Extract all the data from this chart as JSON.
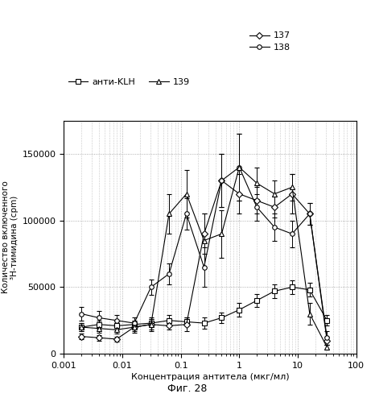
{
  "xlabel": "Концентрация антитела (мкг/мл)",
  "ylabel_line1": "Количество включенного",
  "ylabel_line2": "³H-тимидина (cpm)",
  "caption": "Фиг. 28",
  "xlim": [
    0.001,
    100
  ],
  "ylim": [
    0,
    175000
  ],
  "yticks": [
    0,
    50000,
    100000,
    150000
  ],
  "ytick_labels": [
    "0",
    "50000",
    "100000",
    "150000"
  ],
  "xtick_labels": [
    "0.001",
    "0.01",
    "0.1",
    "1",
    "10",
    "100"
  ],
  "series": {
    "137": {
      "x": [
        0.002,
        0.004,
        0.008,
        0.016,
        0.031,
        0.063,
        0.125,
        0.25,
        0.5,
        1.0,
        2.0,
        4.0,
        8.0,
        16.0,
        31.6
      ],
      "y": [
        13000,
        12000,
        11000,
        20000,
        22000,
        21000,
        22000,
        90000,
        130000,
        120000,
        115000,
        110000,
        120000,
        105000,
        10000
      ],
      "yerr": [
        2000,
        2000,
        2000,
        3000,
        4000,
        3000,
        5000,
        15000,
        20000,
        15000,
        10000,
        8000,
        15000,
        8000,
        3000
      ],
      "marker": "D",
      "label": "137"
    },
    "138": {
      "x": [
        0.002,
        0.004,
        0.008,
        0.016,
        0.031,
        0.063,
        0.125,
        0.25,
        0.5,
        1.0,
        2.0,
        4.0,
        8.0,
        16.0,
        31.6
      ],
      "y": [
        30000,
        27000,
        25000,
        23000,
        50000,
        60000,
        105000,
        65000,
        130000,
        140000,
        110000,
        95000,
        90000,
        105000,
        12000
      ],
      "yerr": [
        5000,
        5000,
        4000,
        4000,
        6000,
        8000,
        12000,
        15000,
        20000,
        25000,
        10000,
        10000,
        10000,
        8000,
        5000
      ],
      "marker": "o",
      "label": "138"
    },
    "139": {
      "x": [
        0.002,
        0.004,
        0.008,
        0.016,
        0.031,
        0.063,
        0.125,
        0.25,
        0.5,
        1.0,
        2.0,
        4.0,
        8.0,
        16.0,
        31.6
      ],
      "y": [
        20000,
        19000,
        18000,
        20000,
        22000,
        105000,
        120000,
        85000,
        90000,
        140000,
        128000,
        120000,
        125000,
        30000,
        5000
      ],
      "yerr": [
        3000,
        3000,
        3000,
        4000,
        5000,
        15000,
        18000,
        20000,
        18000,
        25000,
        12000,
        10000,
        10000,
        8000,
        2000
      ],
      "marker": "^",
      "label": "139"
    },
    "anti-KLH": {
      "x": [
        0.002,
        0.004,
        0.008,
        0.016,
        0.031,
        0.063,
        0.125,
        0.25,
        0.5,
        1.0,
        2.0,
        4.0,
        8.0,
        16.0,
        31.6
      ],
      "y": [
        20000,
        22000,
        21000,
        22000,
        23000,
        25000,
        24000,
        23000,
        27000,
        33000,
        40000,
        47000,
        50000,
        48000,
        25000
      ],
      "yerr": [
        3000,
        3000,
        3000,
        3000,
        3000,
        4000,
        3000,
        4000,
        4000,
        5000,
        5000,
        5000,
        5000,
        5000,
        4000
      ],
      "marker": "s",
      "label": "анти-KLH"
    }
  }
}
